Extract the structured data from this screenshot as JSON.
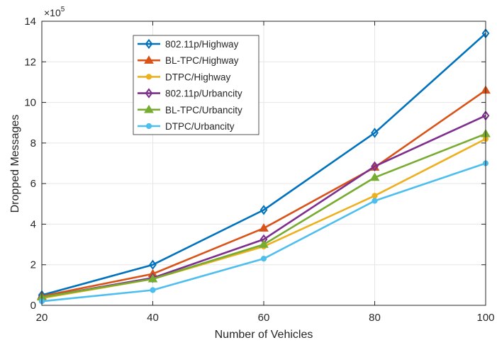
{
  "chart_data": {
    "type": "line",
    "xlabel": "Number of Vehicles",
    "ylabel": "Dropped Messages",
    "y_exponent_label": "×10",
    "y_exponent_power": "5",
    "x_ticks": [
      "20",
      "40",
      "60",
      "80",
      "100"
    ],
    "y_ticks": [
      "0",
      "2",
      "4",
      "6",
      "8",
      "10",
      "12",
      "14"
    ],
    "xlim": [
      20,
      100
    ],
    "ylim": [
      0,
      14
    ],
    "grid": true,
    "legend_position": "top-left",
    "x": [
      20,
      40,
      60,
      80,
      100
    ],
    "series": [
      {
        "name": "802.11p/Highway",
        "color": "#0072BD",
        "marker": "diamond",
        "values": [
          0.5,
          2.0,
          4.7,
          8.5,
          13.4
        ]
      },
      {
        "name": "BL-TPC/Highway",
        "color": "#D95319",
        "marker": "triangle",
        "values": [
          0.45,
          1.55,
          3.8,
          6.8,
          10.6
        ]
      },
      {
        "name": "DTPC/Highway",
        "color": "#EDB120",
        "marker": "circle",
        "values": [
          0.35,
          1.3,
          2.9,
          5.4,
          8.2
        ]
      },
      {
        "name": "802.11p/Urbancity",
        "color": "#7E2F8E",
        "marker": "diamond",
        "values": [
          0.4,
          1.35,
          3.25,
          6.85,
          9.35
        ]
      },
      {
        "name": "BL-TPC/Urbancity",
        "color": "#77AC30",
        "marker": "triangle",
        "values": [
          0.4,
          1.3,
          3.0,
          6.3,
          8.45
        ]
      },
      {
        "name": "DTPC/Urbancity",
        "color": "#4DBEEE",
        "marker": "circle",
        "values": [
          0.2,
          0.75,
          2.3,
          5.15,
          7.0
        ]
      }
    ]
  }
}
